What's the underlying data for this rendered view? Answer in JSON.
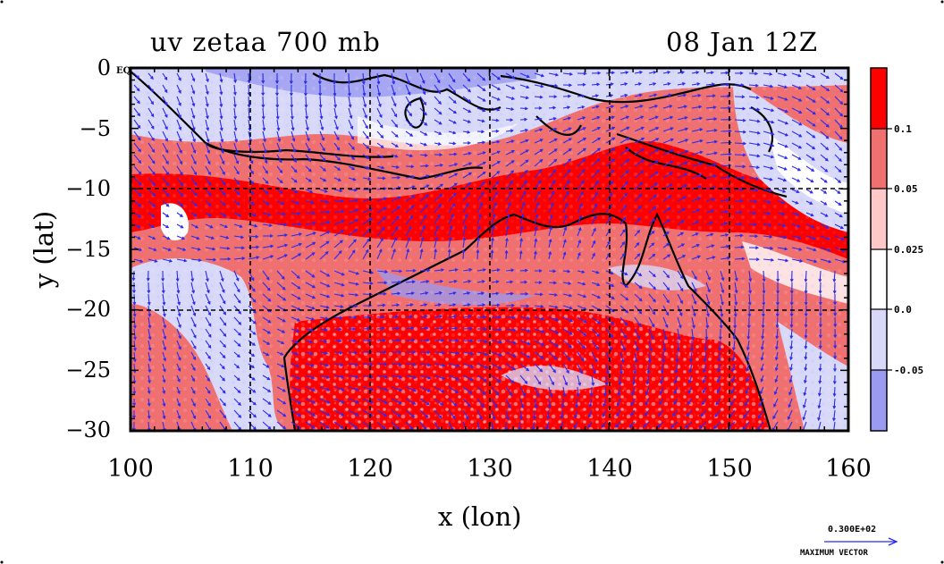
{
  "title_left": "uv zetaa 700 mb",
  "title_right": "08 Jan 12Z",
  "x_axis": {
    "label": "x (lon)",
    "ticks": [
      "100",
      "110",
      "120",
      "130",
      "140",
      "150",
      "160"
    ],
    "range": [
      100,
      160
    ]
  },
  "y_axis": {
    "label": "y (lat)",
    "ticks": [
      "0",
      "−5",
      "−10",
      "−15",
      "−20",
      "−25",
      "−30"
    ],
    "range": [
      -30,
      0
    ]
  },
  "equator_marker": "EQ",
  "colorbar": {
    "labels": [
      "0.1",
      "0.05",
      "0.025",
      "0.0",
      "-0.05"
    ],
    "colors": [
      "#ff0000",
      "#f07070",
      "#ffc8c8",
      "#ffffff",
      "#d8d8f8",
      "#9a9af0"
    ]
  },
  "vector_reference": {
    "value": "0.300E+02",
    "label": "MAXIMUM VECTOR"
  },
  "colors": {
    "vector": "#2a2af0",
    "coast": "#000000",
    "strong_pos": "#ff0000",
    "mid_pos": "#f07070",
    "light_pos": "#ffc8c8",
    "light_neg": "#d8d8f8",
    "strong_neg": "#9a9af0"
  }
}
